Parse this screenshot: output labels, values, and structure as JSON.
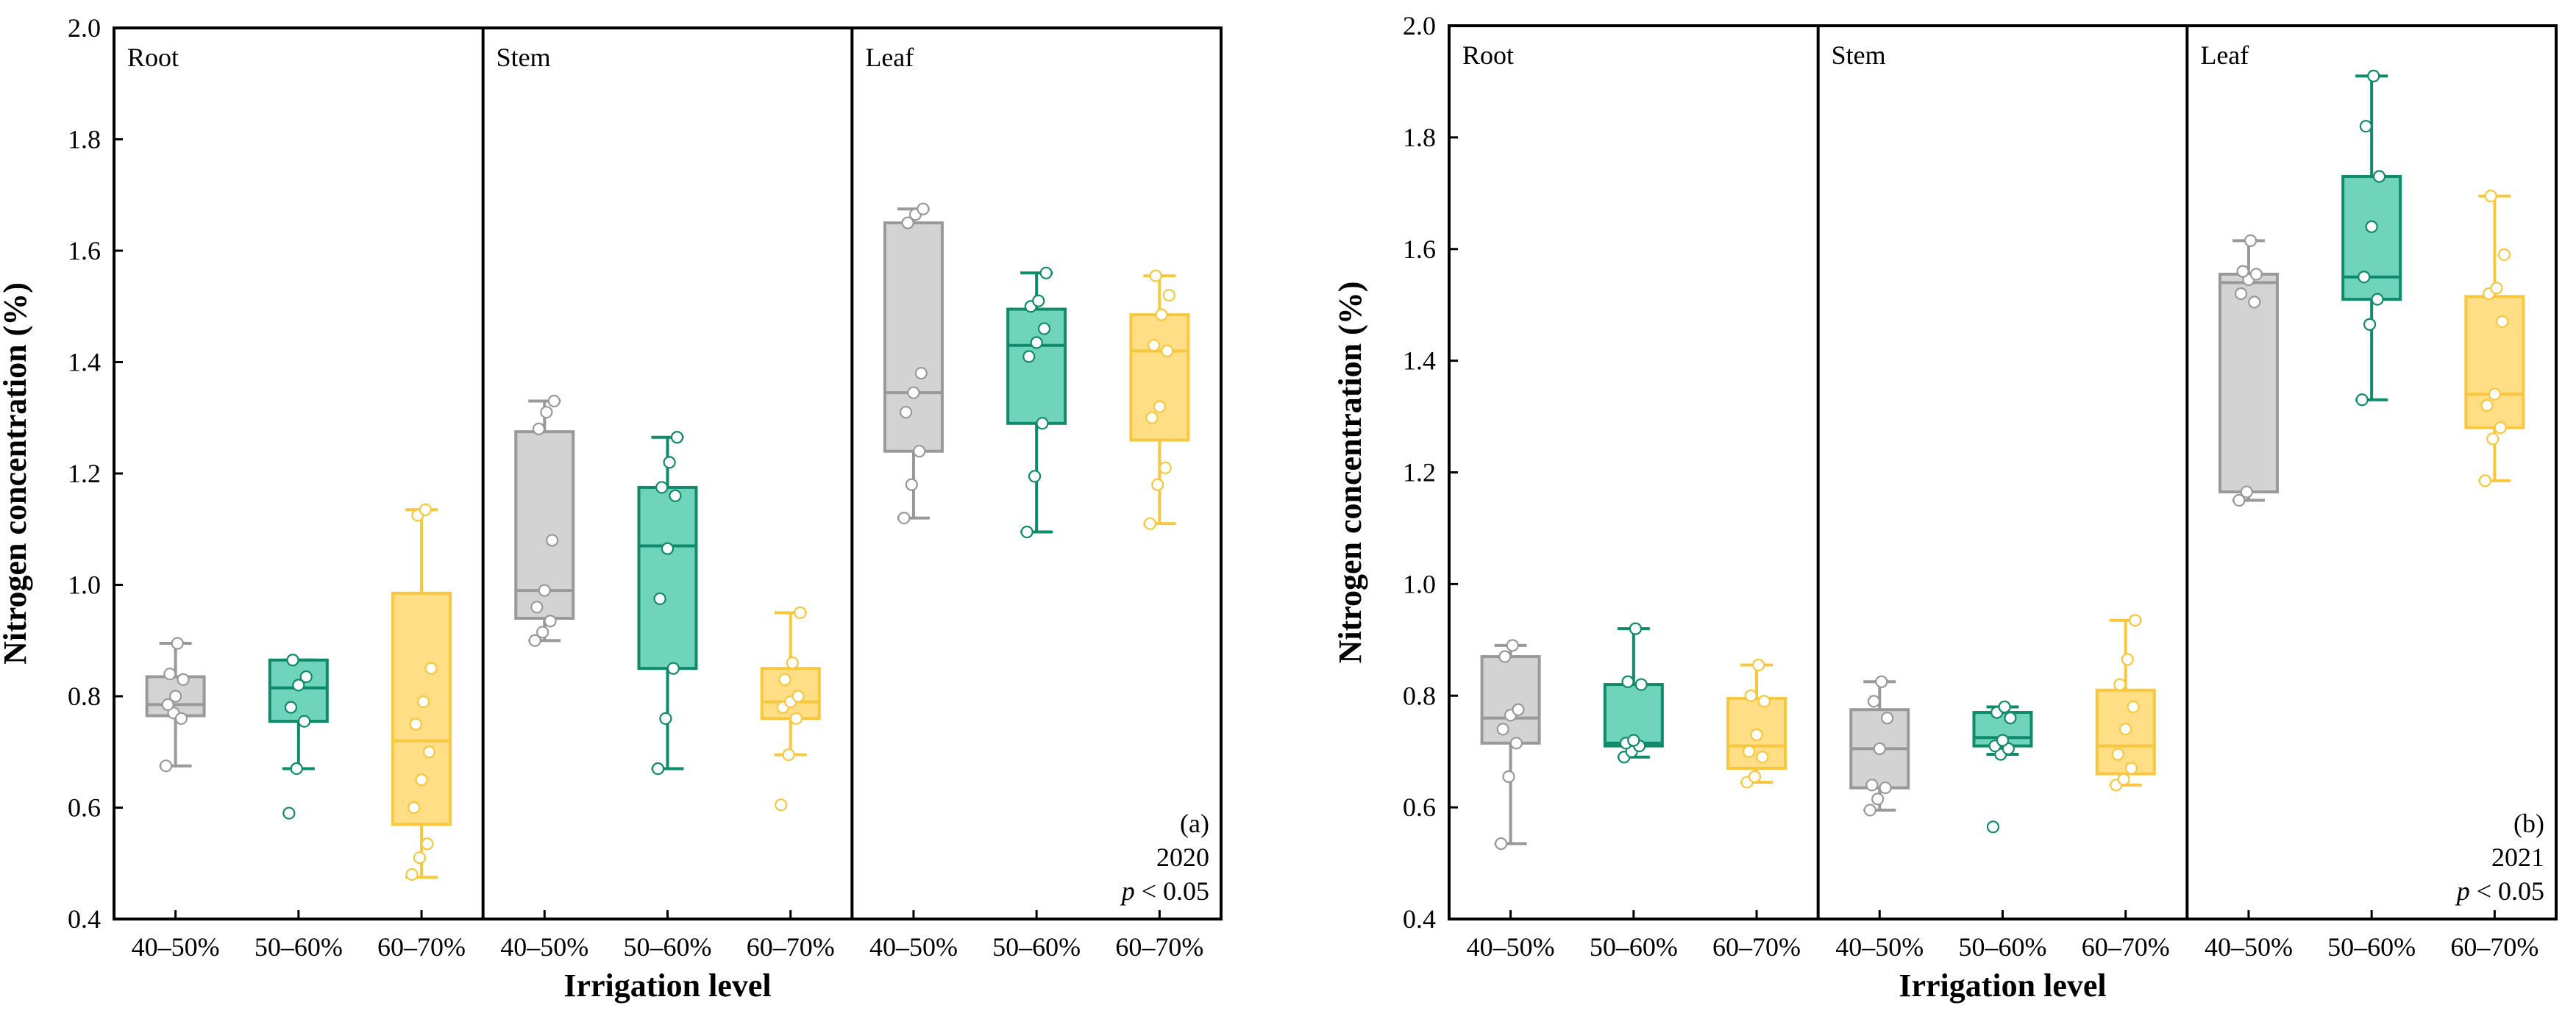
{
  "colors": {
    "40–50%": {
      "fill": "#d3d3d3",
      "stroke": "#999999"
    },
    "50–60%": {
      "fill": "#6fd4b9",
      "stroke": "#0f8a6a"
    },
    "60–70%": {
      "fill": "#ffde85",
      "stroke": "#f9c73e"
    }
  },
  "chart_data": [
    {
      "type": "box",
      "ylabel": "Nitrogen concentration (%)",
      "xlabel": "Irrigation level",
      "ylim": [
        0.4,
        2.0
      ],
      "yticks": [
        "0.4",
        "0.6",
        "0.8",
        "1.0",
        "1.2",
        "1.4",
        "1.6",
        "1.8",
        "2.0"
      ],
      "panel_tag": "(a)",
      "year": "2020",
      "p_prefix": "p",
      "p_suffix": " < 0.05",
      "panels": [
        {
          "label": "Root",
          "groups": [
            {
              "name": "40–50%",
              "min": 0.675,
              "q1": 0.765,
              "median": 0.785,
              "q3": 0.835,
              "max": 0.895,
              "points": [
                0.675,
                0.77,
                0.76,
                0.785,
                0.8,
                0.83,
                0.84,
                0.895
              ]
            },
            {
              "name": "50–60%",
              "min": 0.67,
              "q1": 0.755,
              "median": 0.815,
              "q3": 0.865,
              "max": 0.865,
              "points": [
                0.59,
                0.67,
                0.755,
                0.78,
                0.82,
                0.835,
                0.865
              ]
            },
            {
              "name": "60–70%",
              "min": 0.475,
              "q1": 0.57,
              "median": 0.72,
              "q3": 0.985,
              "max": 1.135,
              "points": [
                0.48,
                0.51,
                0.535,
                0.6,
                0.65,
                0.7,
                0.75,
                0.79,
                0.85,
                1.125,
                1.135
              ]
            }
          ]
        },
        {
          "label": "Stem",
          "groups": [
            {
              "name": "40–50%",
              "min": 0.9,
              "q1": 0.94,
              "median": 0.99,
              "q3": 1.275,
              "max": 1.33,
              "points": [
                0.9,
                0.915,
                0.935,
                0.96,
                0.99,
                1.08,
                1.28,
                1.31,
                1.33
              ]
            },
            {
              "name": "50–60%",
              "min": 0.67,
              "q1": 0.85,
              "median": 1.07,
              "q3": 1.175,
              "max": 1.265,
              "points": [
                0.67,
                0.76,
                0.85,
                0.975,
                1.065,
                1.16,
                1.175,
                1.22,
                1.265
              ]
            },
            {
              "name": "60–70%",
              "min": 0.695,
              "q1": 0.76,
              "median": 0.79,
              "q3": 0.85,
              "max": 0.95,
              "points": [
                0.605,
                0.695,
                0.76,
                0.78,
                0.79,
                0.8,
                0.83,
                0.86,
                0.95
              ]
            }
          ]
        },
        {
          "label": "Leaf",
          "groups": [
            {
              "name": "40–50%",
              "min": 1.12,
              "q1": 1.24,
              "median": 1.345,
              "q3": 1.65,
              "max": 1.675,
              "points": [
                1.12,
                1.18,
                1.24,
                1.31,
                1.345,
                1.38,
                1.65,
                1.665,
                1.675
              ]
            },
            {
              "name": "50–60%",
              "min": 1.095,
              "q1": 1.29,
              "median": 1.43,
              "q3": 1.495,
              "max": 1.56,
              "points": [
                1.095,
                1.195,
                1.29,
                1.41,
                1.435,
                1.46,
                1.5,
                1.51,
                1.56
              ]
            },
            {
              "name": "60–70%",
              "min": 1.11,
              "q1": 1.26,
              "median": 1.42,
              "q3": 1.485,
              "max": 1.555,
              "points": [
                1.11,
                1.18,
                1.21,
                1.3,
                1.32,
                1.42,
                1.43,
                1.485,
                1.52,
                1.555
              ]
            }
          ]
        }
      ]
    },
    {
      "type": "box",
      "ylabel": "Nitrogen concentration (%)",
      "xlabel": "Irrigation level",
      "ylim": [
        0.4,
        2.0
      ],
      "yticks": [
        "0.4",
        "0.6",
        "0.8",
        "1.0",
        "1.2",
        "1.4",
        "1.6",
        "1.8",
        "2.0"
      ],
      "panel_tag": "(b)",
      "year": "2021",
      "p_prefix": "p",
      "p_suffix": " < 0.05",
      "panels": [
        {
          "label": "Root",
          "groups": [
            {
              "name": "40–50%",
              "min": 0.535,
              "q1": 0.715,
              "median": 0.76,
              "q3": 0.87,
              "max": 0.89,
              "points": [
                0.535,
                0.655,
                0.715,
                0.74,
                0.765,
                0.775,
                0.87,
                0.89
              ]
            },
            {
              "name": "50–60%",
              "min": 0.69,
              "q1": 0.71,
              "median": 0.715,
              "q3": 0.82,
              "max": 0.92,
              "points": [
                0.69,
                0.7,
                0.71,
                0.715,
                0.72,
                0.82,
                0.825,
                0.92
              ]
            },
            {
              "name": "60–70%",
              "min": 0.645,
              "q1": 0.67,
              "median": 0.71,
              "q3": 0.795,
              "max": 0.855,
              "points": [
                0.645,
                0.655,
                0.69,
                0.7,
                0.73,
                0.79,
                0.8,
                0.855
              ]
            }
          ]
        },
        {
          "label": "Stem",
          "groups": [
            {
              "name": "40–50%",
              "min": 0.595,
              "q1": 0.635,
              "median": 0.705,
              "q3": 0.775,
              "max": 0.825,
              "points": [
                0.595,
                0.615,
                0.635,
                0.64,
                0.705,
                0.76,
                0.79,
                0.825
              ]
            },
            {
              "name": "50–60%",
              "min": 0.695,
              "q1": 0.71,
              "median": 0.725,
              "q3": 0.77,
              "max": 0.78,
              "points": [
                0.565,
                0.695,
                0.705,
                0.71,
                0.72,
                0.76,
                0.77,
                0.78
              ]
            },
            {
              "name": "60–70%",
              "min": 0.64,
              "q1": 0.66,
              "median": 0.71,
              "q3": 0.81,
              "max": 0.935,
              "points": [
                0.64,
                0.65,
                0.67,
                0.695,
                0.74,
                0.78,
                0.82,
                0.865,
                0.935
              ]
            }
          ]
        },
        {
          "label": "Leaf",
          "groups": [
            {
              "name": "40–50%",
              "min": 1.15,
              "q1": 1.165,
              "median": 1.54,
              "q3": 1.555,
              "max": 1.615,
              "points": [
                1.15,
                1.165,
                1.505,
                1.52,
                1.545,
                1.555,
                1.56,
                1.615
              ]
            },
            {
              "name": "50–60%",
              "min": 1.33,
              "q1": 1.51,
              "median": 1.55,
              "q3": 1.73,
              "max": 1.91,
              "points": [
                1.33,
                1.465,
                1.51,
                1.55,
                1.64,
                1.73,
                1.82,
                1.91
              ]
            },
            {
              "name": "60–70%",
              "min": 1.185,
              "q1": 1.28,
              "median": 1.34,
              "q3": 1.515,
              "max": 1.695,
              "points": [
                1.185,
                1.26,
                1.28,
                1.32,
                1.34,
                1.47,
                1.52,
                1.53,
                1.59,
                1.695
              ]
            }
          ]
        }
      ]
    }
  ]
}
